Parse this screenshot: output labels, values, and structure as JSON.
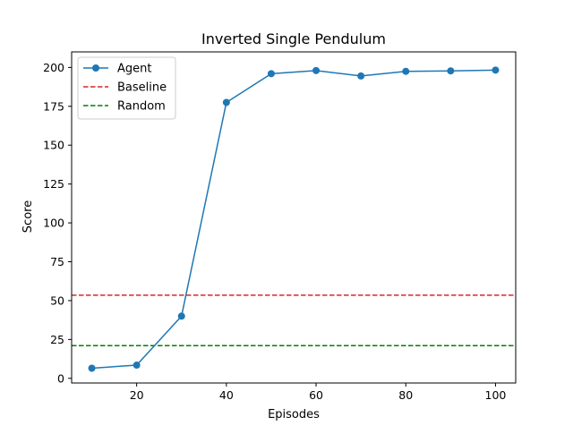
{
  "chart_data": {
    "type": "line",
    "title": "Inverted Single Pendulum",
    "xlabel": "Episodes",
    "ylabel": "Score",
    "xlim": [
      5.5,
      104.5
    ],
    "ylim": [
      -3,
      210
    ],
    "xticks": [
      20,
      40,
      60,
      80,
      100
    ],
    "yticks": [
      0,
      25,
      50,
      75,
      100,
      125,
      150,
      175,
      200
    ],
    "grid": false,
    "legend_position": "upper-left",
    "series": [
      {
        "name": "Agent",
        "style": "line-with-markers",
        "color": "#1f77b4",
        "x": [
          10,
          20,
          30,
          40,
          50,
          60,
          70,
          80,
          90,
          100
        ],
        "y": [
          6.5,
          8.5,
          40,
          177.5,
          196,
          198,
          194.5,
          197.5,
          197.8,
          198.3
        ]
      },
      {
        "name": "Baseline",
        "style": "dashed-horizontal",
        "color": "#d62728",
        "y": 53.5
      },
      {
        "name": "Random",
        "style": "dashed-horizontal",
        "color": "#008000",
        "y": 21
      }
    ]
  }
}
